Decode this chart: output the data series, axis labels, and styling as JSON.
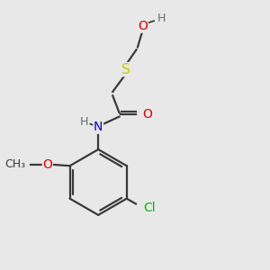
{
  "bg_color": "#e8e8e8",
  "bond_color": "#3a3a3a",
  "atom_colors": {
    "O": "#dd0000",
    "N": "#0000cc",
    "S": "#cccc00",
    "Cl": "#00bb00",
    "H": "#607070",
    "C": "#3a3a3a"
  },
  "font_size": 10,
  "font_size_small": 9,
  "lw": 1.6
}
